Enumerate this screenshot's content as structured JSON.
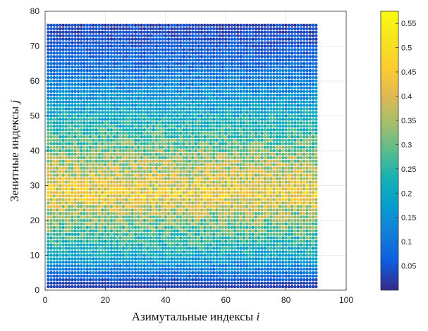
{
  "chart_data": {
    "type": "scatter",
    "title": "",
    "xlabel": "Азимутальные индексы i",
    "ylabel": "Зенитные индексы j",
    "xlabel_text": "Азимутальные индексы ",
    "xlabel_var": "i",
    "ylabel_text": "Зенитные индексы ",
    "ylabel_var": "j",
    "xlim": [
      0,
      100
    ],
    "ylim": [
      0,
      80
    ],
    "xticks": [
      "0",
      "20",
      "40",
      "60",
      "80",
      "100"
    ],
    "yticks": [
      "0",
      "10",
      "20",
      "30",
      "40",
      "50",
      "60",
      "70",
      "80"
    ],
    "grid": true,
    "colormap": "parula",
    "colorbar": {
      "range": [
        0.0,
        0.575
      ],
      "ticks": [
        "0.05",
        "0.1",
        "0.15",
        "0.2",
        "0.25",
        "0.3",
        "0.35",
        "0.4",
        "0.45",
        "0.5",
        "0.55"
      ]
    },
    "grid_points": {
      "i_range": [
        1,
        90
      ],
      "j_range": [
        1,
        76
      ]
    },
    "value_profile_by_j": [
      {
        "j": 1,
        "value": 0.02
      },
      {
        "j": 10,
        "value": 0.2
      },
      {
        "j": 20,
        "value": 0.32
      },
      {
        "j": 28,
        "value": 0.43
      },
      {
        "j": 35,
        "value": 0.36
      },
      {
        "j": 45,
        "value": 0.26
      },
      {
        "j": 55,
        "value": 0.16
      },
      {
        "j": 65,
        "value": 0.08
      },
      {
        "j": 76,
        "value": 0.03
      }
    ]
  }
}
